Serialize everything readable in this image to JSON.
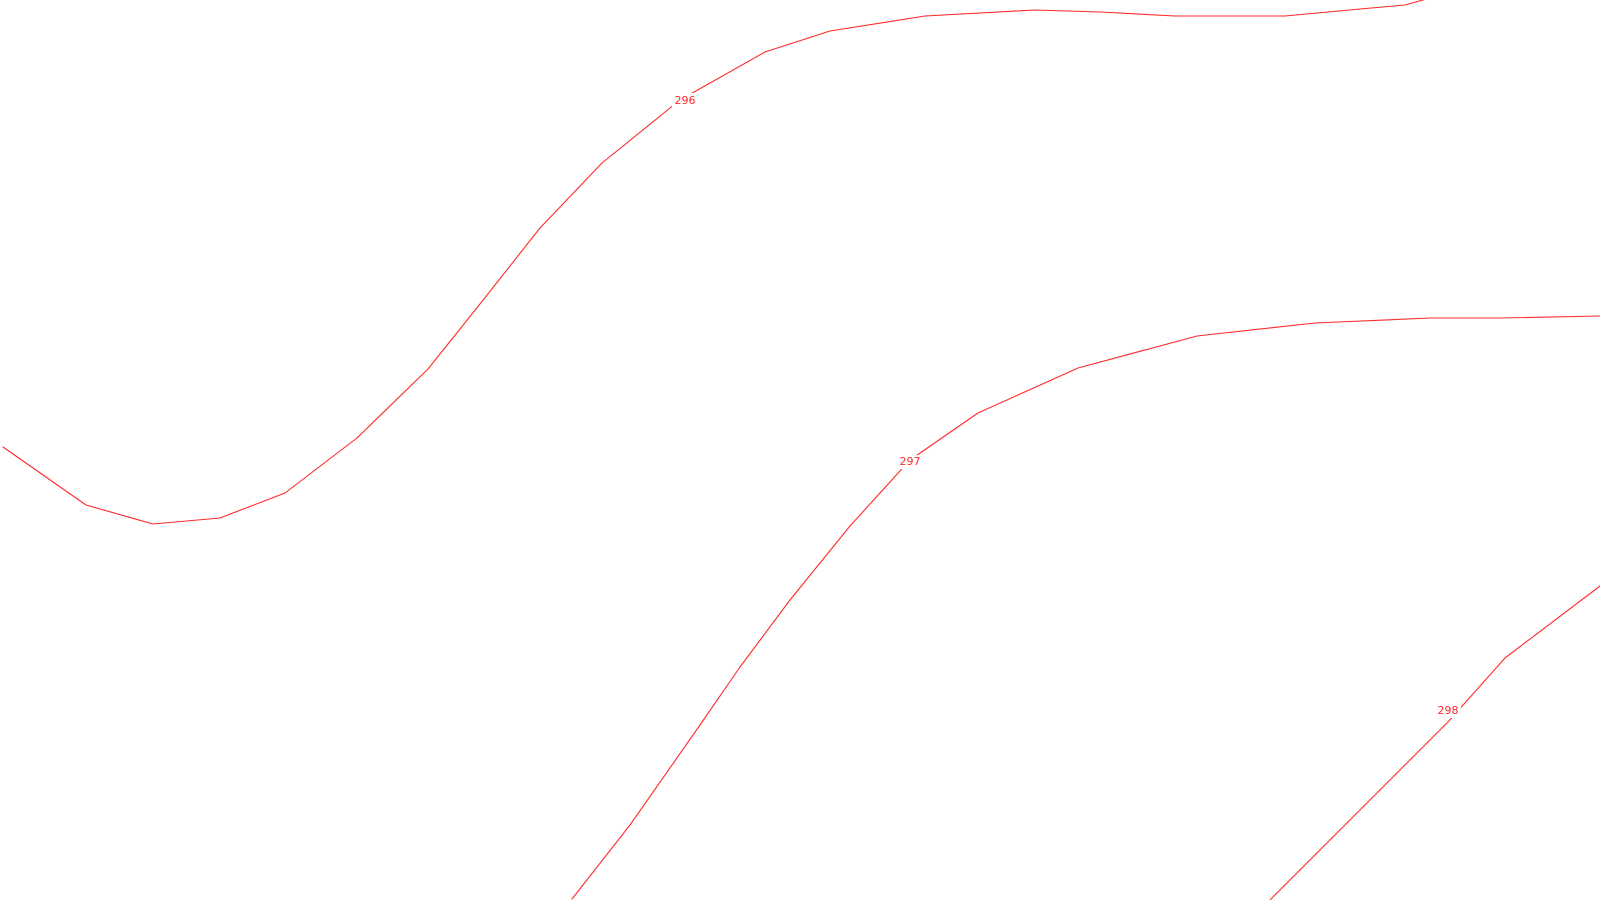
{
  "map": {
    "type": "contour",
    "line_color": "#ff2a2a",
    "background": "#ffffff",
    "contours": [
      {
        "label": "296"
      },
      {
        "label": "297"
      },
      {
        "label": "298"
      }
    ]
  }
}
